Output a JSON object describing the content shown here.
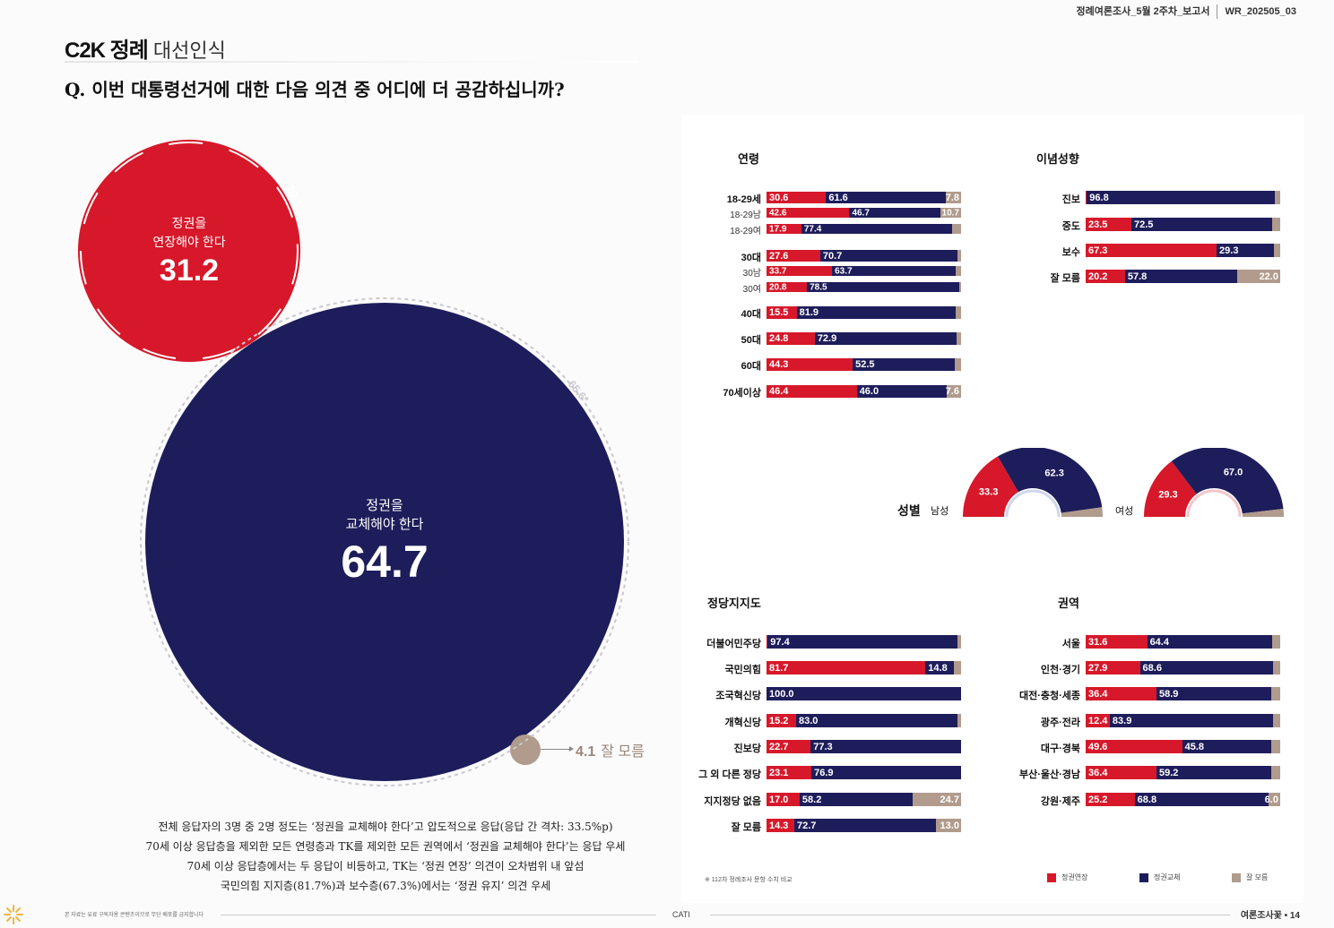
{
  "header": {
    "report": "정례여론조사_5월 2주차_보고서",
    "code": "WR_202505_03"
  },
  "brand": {
    "name": "C2K 정례",
    "section": "대선인식"
  },
  "question": "Q. 이번 대통령선거에 대한 다음 의견 중 어디에 더 공감하십니까?",
  "colors": {
    "extend": "#d7182a",
    "replace": "#1e1d5b",
    "dontknow": "#b09b8c"
  },
  "overall": {
    "extend": {
      "label_l1": "정권을",
      "label_l2": "연장해야 한다",
      "value": "31.2",
      "prev": "29.2*"
    },
    "replace": {
      "label_l1": "정권을",
      "label_l2": "교체해야 한다",
      "value": "64.7",
      "prev": "65.6*"
    },
    "dontknow": {
      "value": "4.1",
      "label": "잘 모름"
    }
  },
  "summary": [
    "전체 응답자의 3명 중 2명 정도는 ‘정권을 교체해야 한다’고 압도적으로 응답(응답 간 격차: 33.5%p)",
    "70세 이상 응답층을 제외한 모든 연령층과 TK를 제외한 모든 권역에서 ‘정권을 교체해야 한다’는 응답 우세",
    "70세 이상 응답층에서는 두 응답이 비등하고, TK는 ‘정권 연장’ 의견이 오차범위 내 앞섬",
    "국민의힘 지지층(81.7%)과 보수층(67.3%)에서는 ‘정권 유지’ 의견 우세"
  ],
  "sections": {
    "age": "연령",
    "ideology": "이념성향",
    "gender": "성별",
    "party": "정당지지도",
    "region": "권역"
  },
  "gender": {
    "male_label": "남성",
    "female_label": "여성"
  },
  "legend": {
    "extend": "정권연장",
    "replace": "정권교체",
    "dontknow": "잘 모름"
  },
  "footnote": "※ 112차 정례조사 문항 수치 비교",
  "footer": {
    "left": "본 자료는 유료 구독자용 콘텐츠이므로 무단 배포를 금지합니다",
    "center": "CATI",
    "right": "여론조사꽃 • 14"
  },
  "chart_data": [
    {
      "type": "pie",
      "title": "",
      "categories": [
        "정권을 연장해야 한다",
        "정권을 교체해야 한다",
        "잘 모름"
      ],
      "values": [
        31.2,
        64.7,
        4.1
      ],
      "previous": {
        "정권을 연장해야 한다": 29.2,
        "정권을 교체해야 한다": 65.6
      }
    },
    {
      "type": "bar",
      "stacked": true,
      "title": "연령",
      "rows": [
        {
          "label": "18-29세",
          "values": [
            30.6,
            61.6,
            7.8
          ],
          "show": [
            true,
            true,
            true
          ]
        },
        {
          "label": "18-29남",
          "values": [
            42.6,
            46.7,
            10.7
          ],
          "show": [
            true,
            true,
            true
          ],
          "sub": true
        },
        {
          "label": "18-29여",
          "values": [
            17.9,
            77.4,
            4.7
          ],
          "show": [
            true,
            true,
            false
          ],
          "sub": true
        },
        {
          "label": "30대",
          "values": [
            27.6,
            70.7,
            1.7
          ],
          "show": [
            true,
            true,
            false
          ]
        },
        {
          "label": "30남",
          "values": [
            33.7,
            63.7,
            2.6
          ],
          "show": [
            true,
            true,
            false
          ],
          "sub": true
        },
        {
          "label": "30여",
          "values": [
            20.8,
            78.5,
            0.7
          ],
          "show": [
            true,
            true,
            false
          ],
          "sub": true
        },
        {
          "label": "40대",
          "values": [
            15.5,
            81.9,
            2.6
          ],
          "show": [
            true,
            true,
            false
          ]
        },
        {
          "label": "50대",
          "values": [
            24.8,
            72.9,
            2.3
          ],
          "show": [
            true,
            true,
            false
          ]
        },
        {
          "label": "60대",
          "values": [
            44.3,
            52.5,
            3.2
          ],
          "show": [
            true,
            true,
            false
          ]
        },
        {
          "label": "70세이상",
          "values": [
            46.4,
            46.0,
            7.6
          ],
          "show": [
            true,
            true,
            true
          ]
        }
      ]
    },
    {
      "type": "bar",
      "stacked": true,
      "title": "이념성향",
      "rows": [
        {
          "label": "진보",
          "values": [
            0.6,
            96.8,
            2.6
          ],
          "show": [
            false,
            true,
            false
          ]
        },
        {
          "label": "중도",
          "values": [
            23.5,
            72.5,
            4.0
          ],
          "show": [
            true,
            true,
            false
          ]
        },
        {
          "label": "보수",
          "values": [
            67.3,
            29.3,
            3.4
          ],
          "show": [
            true,
            true,
            false
          ]
        },
        {
          "label": "잘 모름",
          "values": [
            20.2,
            57.8,
            22.0
          ],
          "show": [
            true,
            true,
            true
          ]
        }
      ]
    },
    {
      "type": "pie",
      "title": "성별",
      "rows": [
        {
          "label": "남성",
          "values": [
            33.3,
            62.3,
            4.4
          ]
        },
        {
          "label": "여성",
          "values": [
            29.3,
            67.0,
            3.7
          ]
        }
      ]
    },
    {
      "type": "bar",
      "stacked": true,
      "title": "정당지지도",
      "rows": [
        {
          "label": "더불어민주당",
          "values": [
            0.6,
            97.4,
            2.0
          ],
          "show": [
            false,
            true,
            false
          ],
          "replaceFirst": true
        },
        {
          "label": "국민의힘",
          "values": [
            81.7,
            14.8,
            3.5
          ],
          "show": [
            true,
            true,
            false
          ]
        },
        {
          "label": "조국혁신당",
          "values": [
            0.0,
            100.0,
            0.0
          ],
          "show": [
            false,
            true,
            false
          ],
          "replaceFirst": true
        },
        {
          "label": "개혁신당",
          "values": [
            15.2,
            83.0,
            1.8
          ],
          "show": [
            true,
            true,
            false
          ]
        },
        {
          "label": "진보당",
          "values": [
            22.7,
            77.3,
            0.0
          ],
          "show": [
            true,
            true,
            false
          ]
        },
        {
          "label": "그 외 다른 정당",
          "values": [
            23.1,
            76.9,
            0.0
          ],
          "show": [
            true,
            true,
            false
          ]
        },
        {
          "label": "지지정당 없음",
          "values": [
            17.0,
            58.2,
            24.7
          ],
          "show": [
            true,
            true,
            true
          ]
        },
        {
          "label": "잘 모름",
          "values": [
            14.3,
            72.7,
            13.0
          ],
          "show": [
            true,
            true,
            true
          ]
        }
      ]
    },
    {
      "type": "bar",
      "stacked": true,
      "title": "권역",
      "rows": [
        {
          "label": "서울",
          "values": [
            31.6,
            64.4,
            4.0
          ],
          "show": [
            true,
            true,
            false
          ]
        },
        {
          "label": "인천·경기",
          "values": [
            27.9,
            68.6,
            3.5
          ],
          "show": [
            true,
            true,
            false
          ]
        },
        {
          "label": "대전·충청·세종",
          "values": [
            36.4,
            58.9,
            4.7
          ],
          "show": [
            true,
            true,
            false
          ]
        },
        {
          "label": "광주·전라",
          "values": [
            12.4,
            83.9,
            3.7
          ],
          "show": [
            true,
            true,
            false
          ]
        },
        {
          "label": "대구·경북",
          "values": [
            49.6,
            45.8,
            4.6
          ],
          "show": [
            true,
            true,
            false
          ]
        },
        {
          "label": "부산·울산·경남",
          "values": [
            36.4,
            59.2,
            4.4
          ],
          "show": [
            true,
            true,
            false
          ]
        },
        {
          "label": "강원·제주",
          "values": [
            25.2,
            68.8,
            6.0
          ],
          "show": [
            true,
            true,
            true
          ]
        }
      ]
    }
  ]
}
